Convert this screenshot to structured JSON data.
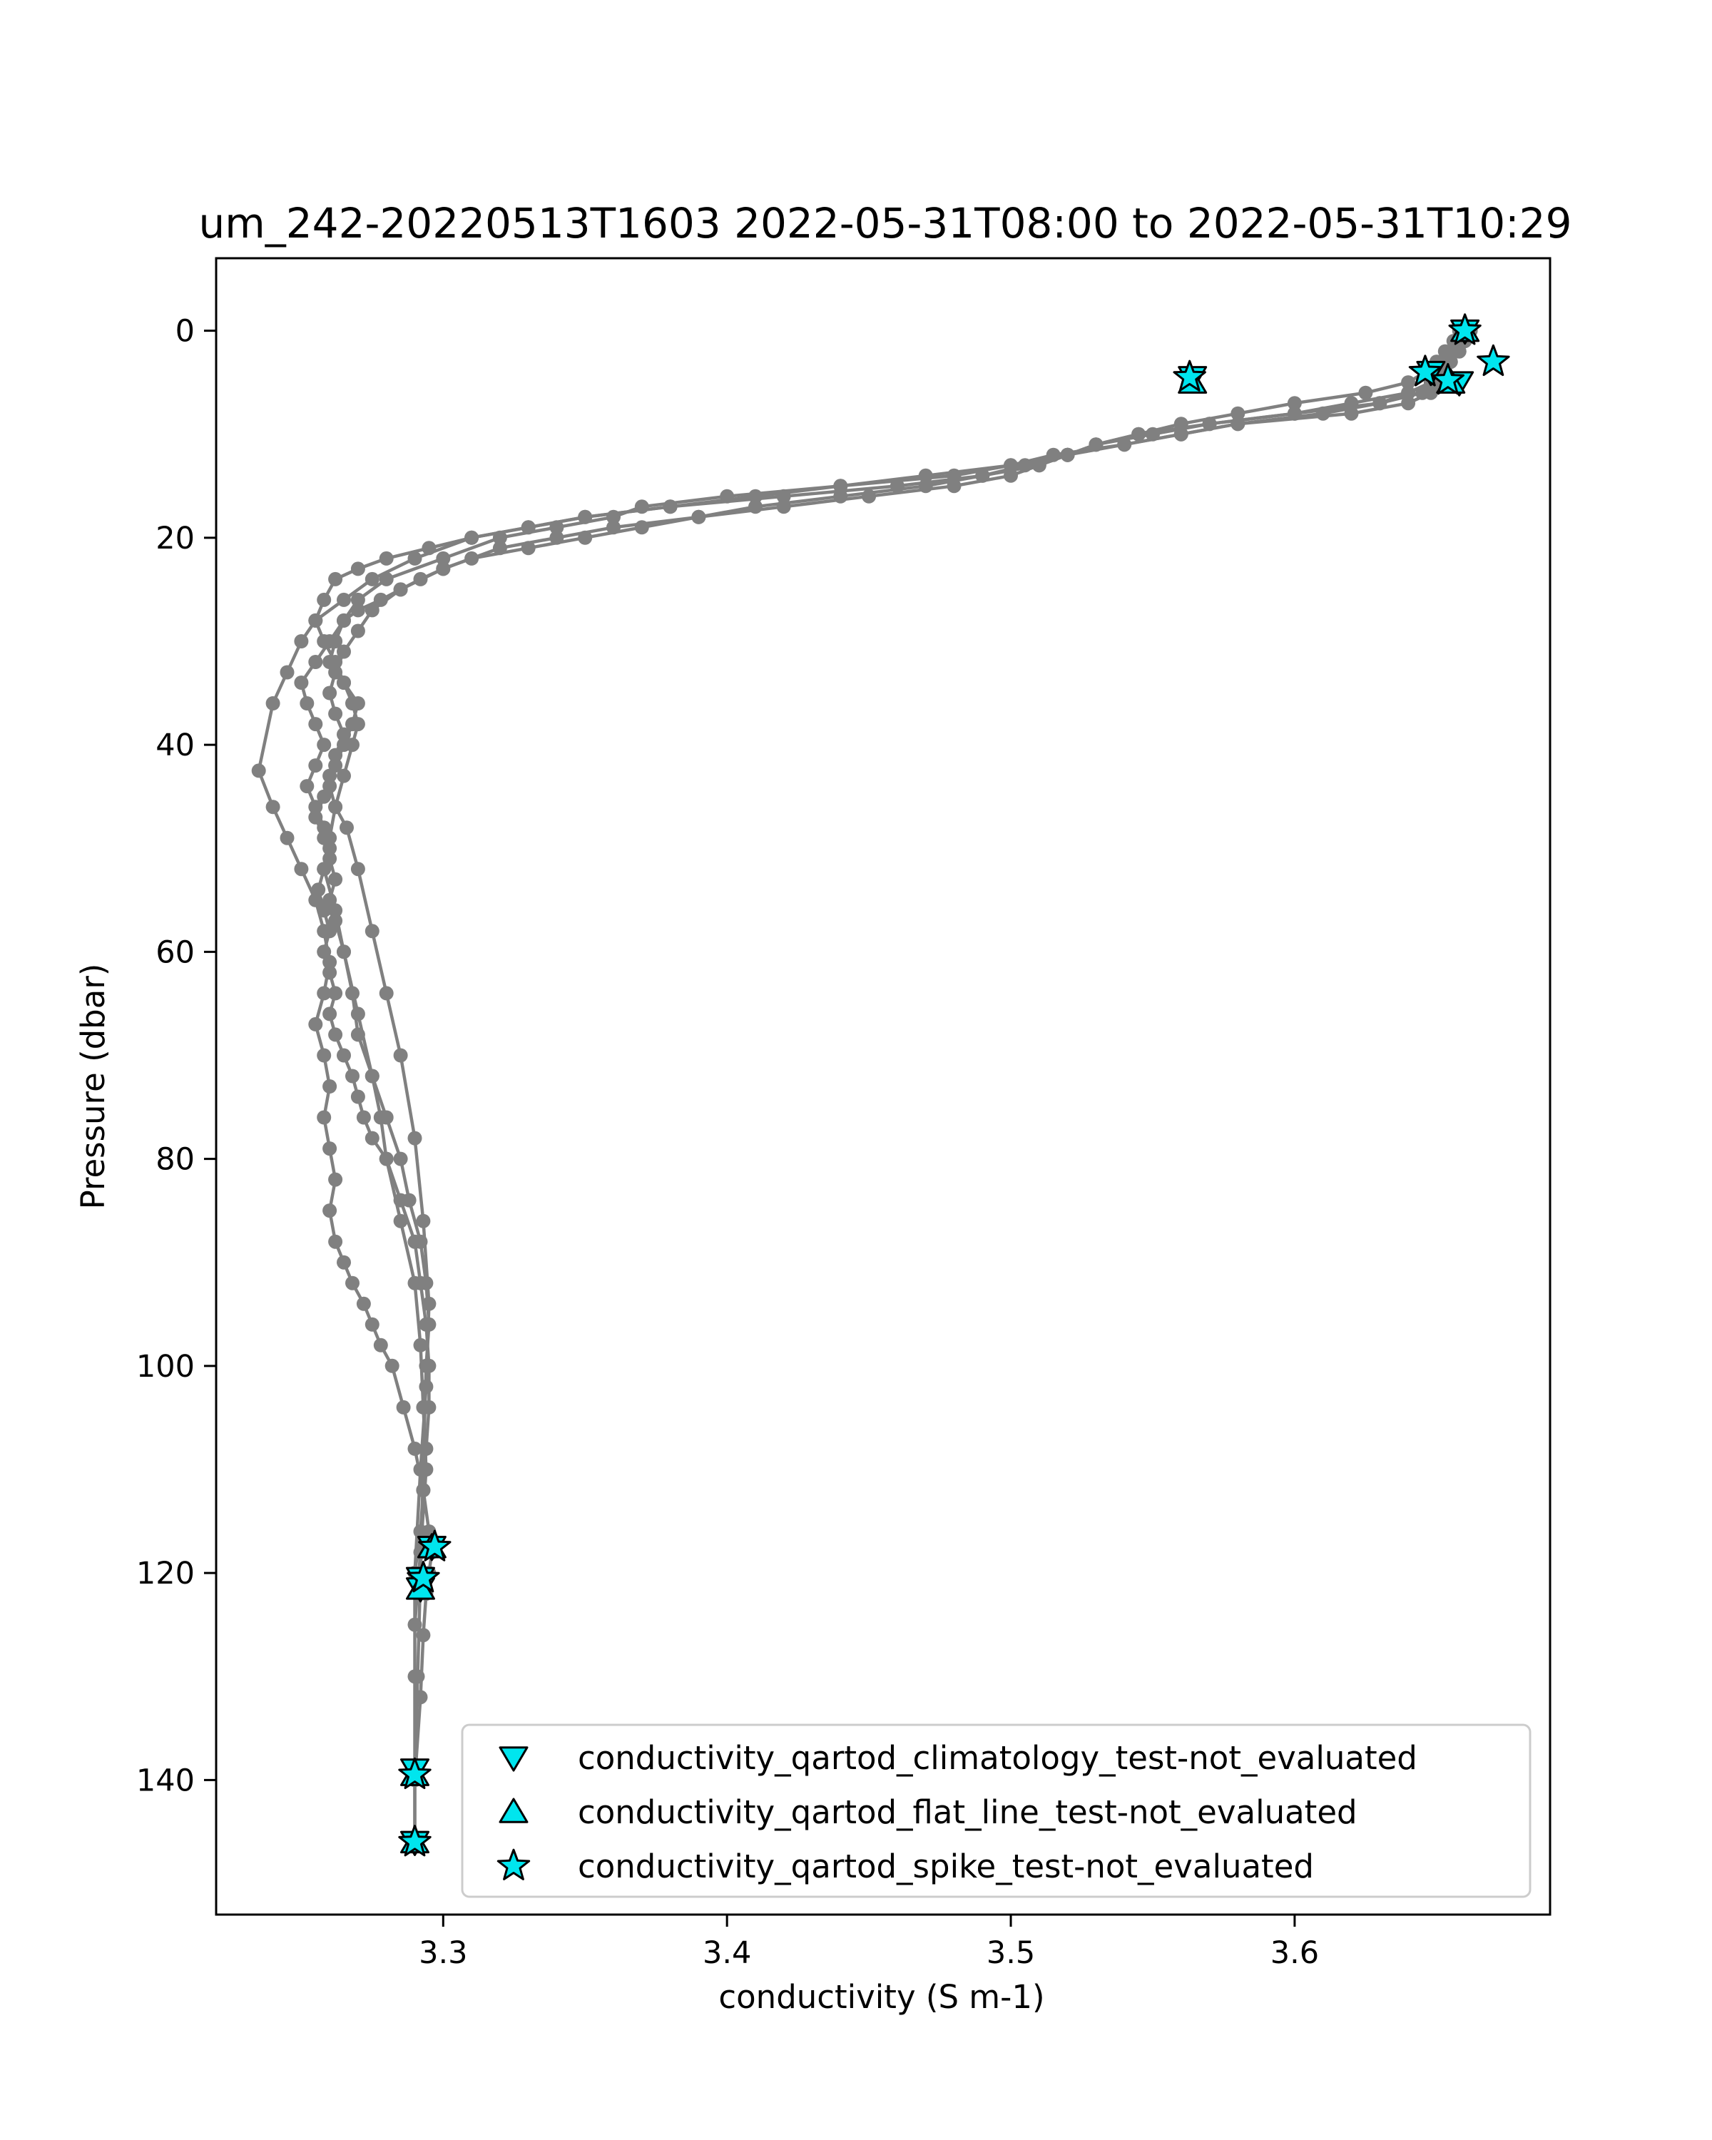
{
  "chart_data": {
    "type": "scatter",
    "title": "um_242-20220513T1603 2022-05-31T08:00 to 2022-05-31T10:29",
    "xlabel": "conductivity (S m-1)",
    "ylabel": "Pressure (dbar)",
    "xlim": [
      3.22,
      3.69
    ],
    "ylim": [
      153,
      -7
    ],
    "y_inverted": true,
    "grid": false,
    "legend_position": "lower-right",
    "x_ticks": [
      3.3,
      3.4,
      3.5,
      3.6
    ],
    "x_tick_labels": [
      "3.3",
      "3.4",
      "3.5",
      "3.6"
    ],
    "y_ticks": [
      0,
      20,
      40,
      60,
      80,
      100,
      120,
      140
    ],
    "y_tick_labels": [
      "0",
      "20",
      "40",
      "60",
      "80",
      "100",
      "120",
      "140"
    ],
    "profile_color": "#808080",
    "marker_color": "#00e5ee",
    "series": [
      {
        "kind": "profile",
        "x": [
          3.66,
          3.658,
          3.656,
          3.654,
          3.652,
          3.65,
          3.648,
          3.64,
          3.62,
          3.58,
          3.56,
          3.54,
          3.52,
          3.5,
          3.48,
          3.44,
          3.4,
          3.37,
          3.36,
          3.34,
          3.32,
          3.3,
          3.28,
          3.27,
          3.265,
          3.26,
          3.255,
          3.25,
          3.252,
          3.255,
          3.258,
          3.255,
          3.252,
          3.255,
          3.258,
          3.26,
          3.258,
          3.256,
          3.258,
          3.26,
          3.258,
          3.26,
          3.262,
          3.26,
          3.262,
          3.265,
          3.268,
          3.27,
          3.272,
          3.275,
          3.28,
          3.285,
          3.29,
          3.292,
          3.294,
          3.295,
          3.295,
          3.294,
          3.293,
          3.292,
          3.29,
          3.29,
          3.29
        ],
        "y": [
          0,
          1,
          2,
          3,
          4,
          5,
          6,
          7,
          8,
          9,
          10,
          11,
          12,
          13,
          14,
          15,
          16,
          17,
          18,
          19,
          20,
          22,
          24,
          26,
          28,
          30,
          32,
          34,
          36,
          38,
          40,
          42,
          44,
          46,
          48,
          50,
          52,
          54,
          56,
          58,
          60,
          62,
          64,
          66,
          68,
          70,
          72,
          74,
          76,
          78,
          80,
          84,
          88,
          92,
          96,
          100,
          104,
          108,
          112,
          116,
          120,
          130,
          146
        ]
      },
      {
        "kind": "profile",
        "x": [
          3.658,
          3.656,
          3.652,
          3.648,
          3.64,
          3.62,
          3.6,
          3.57,
          3.55,
          3.53,
          3.52,
          3.505,
          3.49,
          3.46,
          3.42,
          3.38,
          3.35,
          3.33,
          3.31,
          3.29,
          3.275,
          3.265,
          3.255,
          3.25,
          3.245,
          3.24,
          3.235,
          3.24,
          3.245,
          3.25,
          3.255,
          3.258,
          3.26,
          3.258,
          3.255,
          3.258,
          3.26,
          3.258,
          3.26,
          3.262,
          3.26,
          3.262,
          3.265,
          3.268,
          3.272,
          3.275,
          3.278,
          3.282,
          3.286,
          3.29,
          3.293,
          3.295,
          3.296,
          3.295,
          3.294,
          3.293,
          3.292,
          3.29,
          3.29
        ],
        "y": [
          0,
          2,
          4,
          5,
          6,
          7,
          8,
          9,
          10,
          11,
          12,
          13,
          14,
          15,
          16,
          17,
          18,
          19,
          20,
          22,
          24,
          26,
          28,
          30,
          33,
          36,
          42.5,
          46,
          49,
          52,
          55,
          58,
          61,
          64,
          67,
          70,
          73,
          76,
          79,
          82,
          85,
          88,
          90,
          92,
          94,
          96,
          98,
          100,
          104,
          108,
          112,
          116,
          118,
          120,
          122,
          126,
          132,
          140,
          146
        ]
      },
      {
        "kind": "profile",
        "x": [
          3.66,
          3.658,
          3.655,
          3.652,
          3.65,
          3.645,
          3.63,
          3.6,
          3.57,
          3.545,
          3.53,
          3.52,
          3.51,
          3.5,
          3.48,
          3.45,
          3.42,
          3.39,
          3.36,
          3.34,
          3.32,
          3.3,
          3.285,
          3.275,
          3.27,
          3.265,
          3.262,
          3.26,
          3.262,
          3.265,
          3.262,
          3.26,
          3.258,
          3.255,
          3.258,
          3.26,
          3.262,
          3.26,
          3.262,
          3.265,
          3.268,
          3.27,
          3.275,
          3.28,
          3.285,
          3.288,
          3.292,
          3.294,
          3.295,
          3.294,
          3.293,
          3.292,
          3.291,
          3.29
        ],
        "y": [
          0,
          2,
          3,
          4,
          5,
          6,
          7,
          8,
          9,
          10,
          11,
          12,
          13,
          14,
          15,
          16,
          17,
          18,
          19,
          20,
          21,
          23,
          25,
          27,
          29,
          31,
          33,
          35,
          37,
          39,
          41,
          43,
          45,
          47,
          49,
          51,
          53,
          55,
          57,
          60,
          64,
          68,
          72,
          76,
          80,
          84,
          88,
          92,
          96,
          100,
          110,
          120,
          130,
          139
        ]
      },
      {
        "kind": "profile",
        "x": [
          3.662,
          3.66,
          3.658,
          3.655,
          3.652,
          3.648,
          3.64,
          3.63,
          3.61,
          3.58,
          3.56,
          3.54,
          3.515,
          3.5,
          3.47,
          3.44,
          3.41,
          3.38,
          3.35,
          3.33,
          3.31,
          3.295,
          3.28,
          3.27,
          3.262,
          3.258,
          3.255,
          3.258,
          3.262,
          3.265,
          3.268,
          3.27,
          3.268,
          3.265,
          3.262,
          3.26,
          3.258,
          3.262,
          3.265,
          3.27,
          3.275,
          3.278,
          3.28,
          3.285,
          3.29,
          3.292,
          3.293,
          3.294,
          3.292,
          3.29
        ],
        "y": [
          0,
          1,
          2,
          3,
          4,
          5,
          6,
          7,
          8,
          9,
          10,
          11,
          12,
          13,
          14,
          15,
          16,
          17,
          18,
          19,
          20,
          21,
          22,
          23,
          24,
          26,
          28,
          30,
          32,
          34,
          36,
          38,
          40,
          43,
          46,
          49,
          52,
          56,
          60,
          66,
          72,
          76,
          80,
          86,
          92,
          98,
          104,
          110,
          118,
          125
        ]
      },
      {
        "kind": "profile",
        "x": [
          3.66,
          3.656,
          3.653,
          3.65,
          3.646,
          3.64,
          3.625,
          3.6,
          3.58,
          3.56,
          3.545,
          3.53,
          3.52,
          3.51,
          3.49,
          3.47,
          3.44,
          3.41,
          3.39,
          3.37,
          3.35,
          3.33,
          3.31,
          3.3,
          3.292,
          3.285,
          3.278,
          3.27,
          3.265,
          3.262,
          3.26,
          3.265,
          3.27,
          3.268,
          3.265,
          3.262,
          3.26,
          3.262,
          3.266,
          3.27,
          3.275,
          3.28,
          3.285,
          3.29,
          3.293,
          3.295,
          3.294,
          3.292,
          3.29
        ],
        "y": [
          0,
          1,
          2,
          3,
          4,
          5,
          6,
          7,
          8,
          9,
          10,
          11,
          12,
          13,
          14,
          15,
          16,
          17,
          18,
          19,
          20,
          21,
          22,
          23,
          24,
          25,
          26,
          27,
          28,
          30,
          32,
          34,
          36,
          38,
          40,
          42,
          44,
          46,
          48,
          52,
          58,
          64,
          70,
          78,
          86,
          94,
          102,
          110,
          120
        ]
      }
    ],
    "qc_markers": [
      {
        "name": "conductivity_qartod_climatology_test-not_evaluated",
        "marker": "triangle-down",
        "x": [
          3.66,
          3.564,
          3.648,
          3.658,
          3.296,
          3.292,
          3.292,
          3.29,
          3.29
        ],
        "y": [
          0,
          4.5,
          4,
          5,
          117.5,
          120.5,
          121.5,
          139,
          146
        ]
      },
      {
        "name": "conductivity_qartod_flat_line_test-not_evaluated",
        "marker": "triangle-up",
        "x": [
          3.66,
          3.564,
          3.655,
          3.296,
          3.292,
          3.29,
          3.29
        ],
        "y": [
          0,
          5,
          5,
          117.5,
          121.5,
          139.5,
          146
        ]
      },
      {
        "name": "conductivity_qartod_spike_test-not_evaluated",
        "marker": "star",
        "x": [
          3.66,
          3.67,
          3.563,
          3.646,
          3.654,
          3.297,
          3.293,
          3.29,
          3.29
        ],
        "y": [
          0,
          3,
          4.5,
          4,
          4.8,
          117.5,
          120.5,
          139.5,
          146
        ]
      }
    ]
  }
}
